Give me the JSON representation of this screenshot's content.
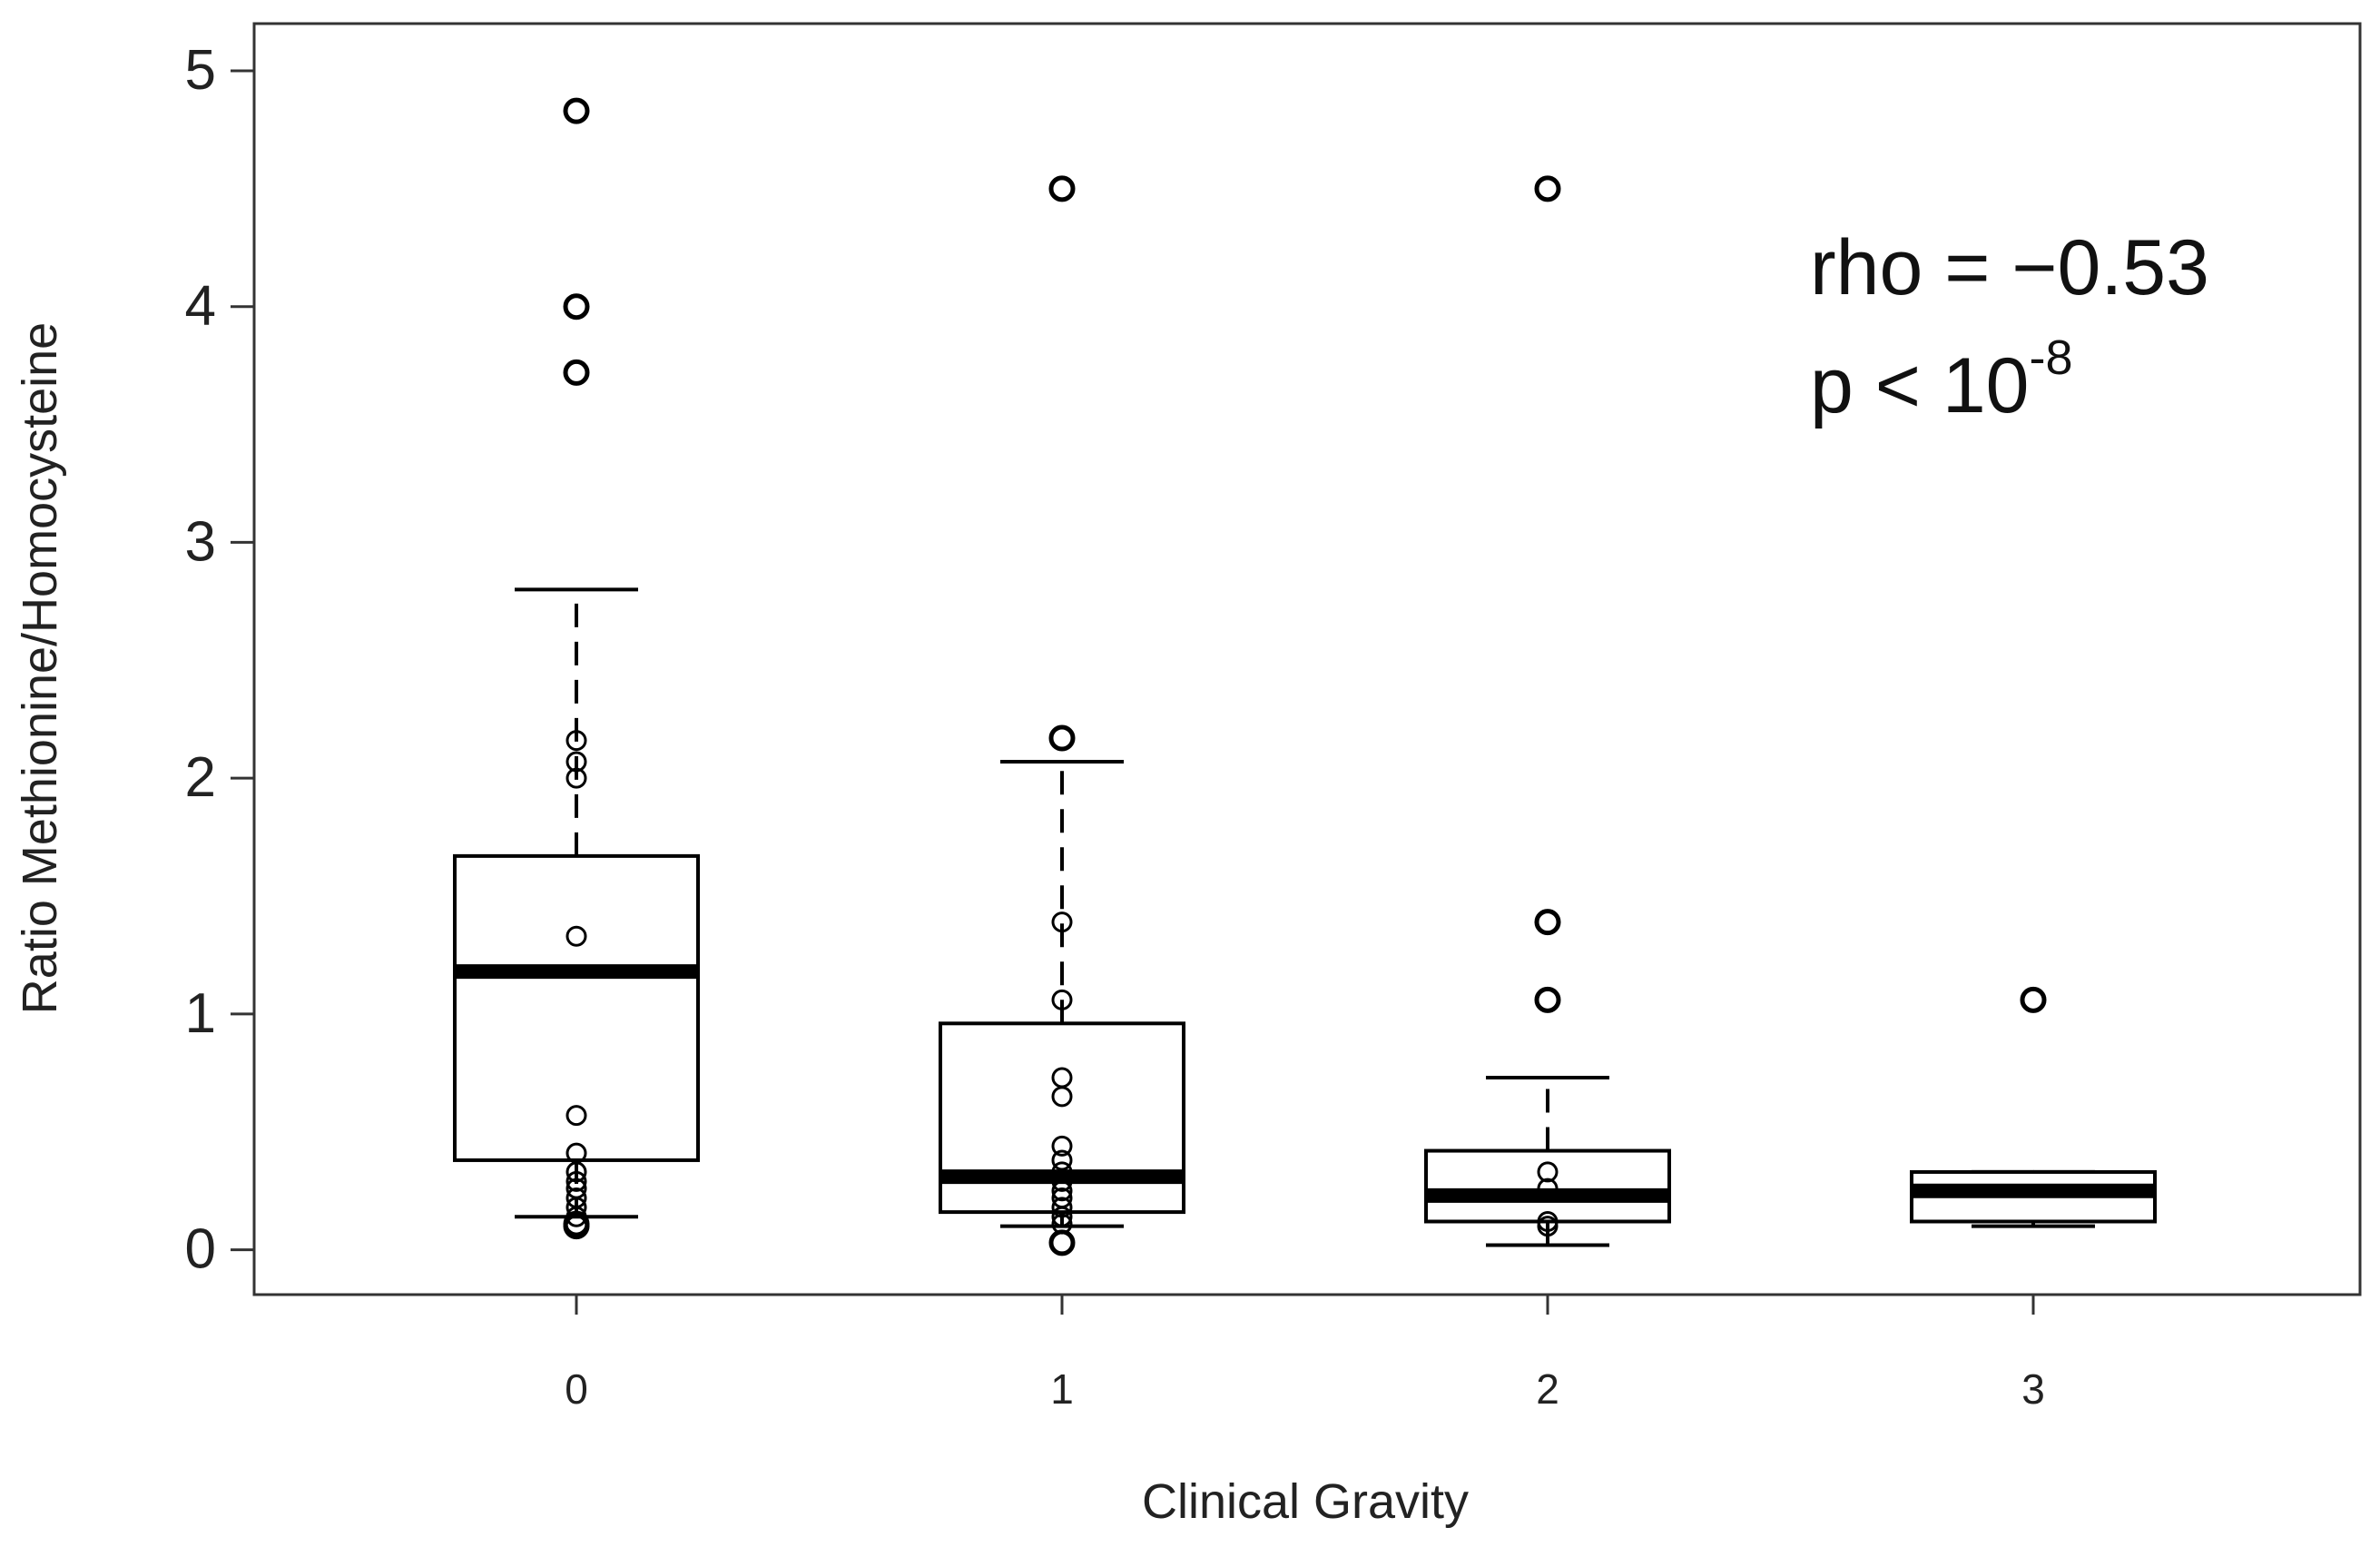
{
  "chart_data": {
    "type": "box",
    "title": "",
    "xlabel": "Clinical Gravity",
    "ylabel": "Ratio Methionine/Homocysteine",
    "ylim": [
      -0.19,
      5.2
    ],
    "categories": [
      "0",
      "1",
      "2",
      "3"
    ],
    "yticks": [
      0,
      1,
      2,
      3,
      4,
      5
    ],
    "ytick_labels": [
      "0",
      "1",
      "2",
      "3",
      "4",
      "5"
    ],
    "colors": {
      "stroke": "#000000",
      "fill": "#ffffff",
      "frame": "#333333"
    },
    "boxes": [
      {
        "category": "0",
        "whisker_low": 0.14,
        "q1": 0.38,
        "median": 1.18,
        "q3": 1.67,
        "whisker_high": 2.8,
        "points": [
          4.83,
          4.0,
          3.72,
          2.16,
          2.07,
          2.0,
          1.33,
          0.57,
          0.41,
          0.33,
          0.29,
          0.26,
          0.22,
          0.18,
          0.14,
          0.11,
          0.1
        ]
      },
      {
        "category": "1",
        "whisker_low": 0.1,
        "q1": 0.16,
        "median": 0.31,
        "q3": 0.96,
        "whisker_high": 2.07,
        "points": [
          4.5,
          2.17,
          1.39,
          1.06,
          0.73,
          0.65,
          0.44,
          0.38,
          0.33,
          0.29,
          0.25,
          0.22,
          0.18,
          0.14,
          0.11,
          0.03
        ]
      },
      {
        "category": "2",
        "whisker_low": 0.02,
        "q1": 0.12,
        "median": 0.23,
        "q3": 0.42,
        "whisker_high": 0.73,
        "points": [
          4.5,
          1.39,
          1.06,
          0.33,
          0.26,
          0.12,
          0.1
        ]
      },
      {
        "category": "3",
        "whisker_low": 0.1,
        "q1": 0.12,
        "median": 0.25,
        "q3": 0.33,
        "whisker_high": 0.33,
        "points": [
          1.06
        ]
      }
    ],
    "annotations": {
      "rho": "rho = −0.53",
      "p_base": "p < 10",
      "p_exp": "-8"
    }
  }
}
